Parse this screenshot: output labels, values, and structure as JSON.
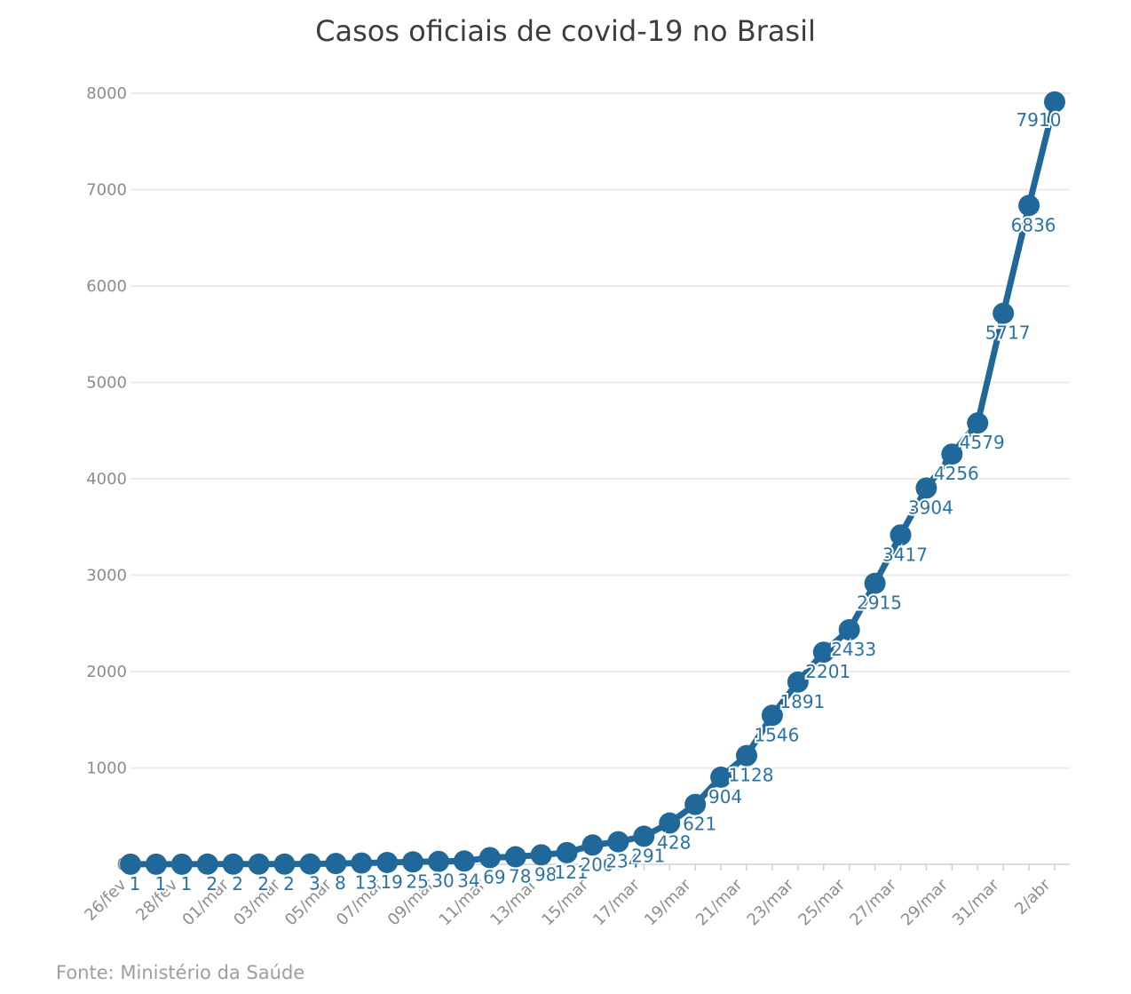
{
  "chart_data": {
    "type": "line",
    "title": "Casos oficiais de covid-19 no Brasil",
    "source": "Fonte: Ministério da Saúde",
    "xlabel": "",
    "ylabel": "",
    "ylim": [
      0,
      8000
    ],
    "y_ticks": [
      0,
      1000,
      2000,
      3000,
      4000,
      5000,
      6000,
      7000,
      8000
    ],
    "grid": "horizontal",
    "legend": "none",
    "n_points": 37,
    "x_tick_every": 2,
    "x_tick_labels": [
      "26/fev",
      "28/fev",
      "01/mar",
      "03/mar",
      "05/mar",
      "07/mar",
      "09/mar",
      "11/mar",
      "13/mar",
      "15/mar",
      "17/mar",
      "19/mar",
      "21/mar",
      "23/mar",
      "25/mar",
      "27/mar",
      "29/mar",
      "31/mar",
      "2/abr"
    ],
    "values": [
      1,
      1,
      1,
      2,
      2,
      2,
      2,
      3,
      8,
      13,
      19,
      25,
      30,
      34,
      69,
      78,
      98,
      121,
      200,
      234,
      291,
      428,
      621,
      904,
      1128,
      1546,
      1891,
      2201,
      2433,
      2915,
      3417,
      3904,
      4256,
      4579,
      5717,
      6836,
      7910
    ],
    "point_labels": [
      "1",
      "1",
      "1",
      "2",
      "2",
      "2",
      "2",
      "3",
      "8",
      "13",
      "19",
      "25",
      "30",
      "34",
      "69",
      "78",
      "98",
      "121",
      "200",
      "234",
      "291",
      "428",
      "621",
      "904",
      "1128",
      "1546",
      "1891",
      "2201",
      "2433",
      "2915",
      "3417",
      "3904",
      "4256",
      "4579",
      "5717",
      "6836",
      "7910"
    ],
    "colors": {
      "series": "#20689a",
      "point_label": "#2b72a2",
      "axis_text": "#8c8c8c",
      "grid_line": "#ebebeb",
      "axis_line": "#cfcfcf",
      "title_text": "#3d3d3d",
      "source_text": "#9e9e9e",
      "background": "#ffffff"
    }
  }
}
